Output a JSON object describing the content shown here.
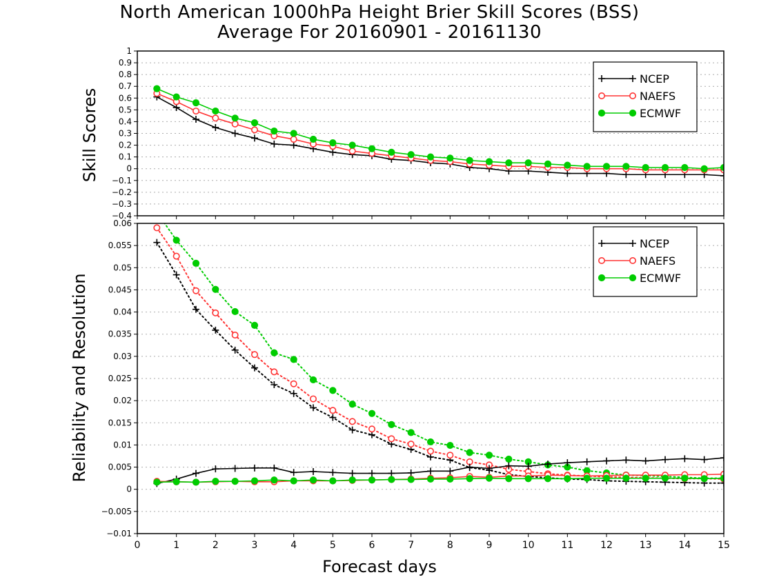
{
  "title": {
    "line1": "North American 1000hPa Height Brier Skill Scores (BSS)",
    "line2": "Average For 20160901 - 20161130"
  },
  "colors": {
    "NCEP": "#000000",
    "NAEFS": "#ff3333",
    "ECMWF": "#00cc00",
    "grid": "#aaaaaa"
  },
  "chart_data": [
    {
      "type": "line",
      "panel": "top",
      "ylabel": "Skill Scores",
      "xlabel": "",
      "xlim": [
        0,
        15
      ],
      "ylim": [
        -0.4,
        1
      ],
      "yticks": [
        -0.4,
        -0.3,
        -0.2,
        -0.1,
        0,
        0.1,
        0.2,
        0.3,
        0.4,
        0.5,
        0.6,
        0.7,
        0.8,
        0.9,
        1
      ],
      "grid": true,
      "legend": "top-right",
      "x": [
        0.5,
        1,
        1.5,
        2,
        2.5,
        3,
        3.5,
        4,
        4.5,
        5,
        5.5,
        6,
        6.5,
        7,
        7.5,
        8,
        8.5,
        9,
        9.5,
        10,
        10.5,
        11,
        11.5,
        12,
        12.5,
        13,
        13.5,
        14,
        14.5,
        15
      ],
      "series": [
        {
          "name": "NCEP",
          "marker": "plus",
          "style": "solid",
          "values": [
            0.61,
            0.52,
            0.42,
            0.35,
            0.3,
            0.26,
            0.21,
            0.2,
            0.17,
            0.14,
            0.12,
            0.11,
            0.08,
            0.07,
            0.05,
            0.04,
            0.01,
            0.0,
            -0.02,
            -0.02,
            -0.03,
            -0.04,
            -0.04,
            -0.04,
            -0.05,
            -0.05,
            -0.05,
            -0.05,
            -0.05,
            -0.06
          ]
        },
        {
          "name": "NAEFS",
          "marker": "open-circle",
          "style": "solid",
          "values": [
            0.64,
            0.57,
            0.49,
            0.43,
            0.38,
            0.33,
            0.28,
            0.25,
            0.21,
            0.19,
            0.15,
            0.13,
            0.11,
            0.09,
            0.07,
            0.06,
            0.04,
            0.03,
            0.02,
            0.02,
            0.01,
            0.01,
            0.0,
            0.0,
            0.0,
            -0.01,
            -0.01,
            -0.01,
            -0.01,
            -0.01
          ]
        },
        {
          "name": "ECMWF",
          "marker": "filled-circle",
          "style": "solid",
          "values": [
            0.68,
            0.61,
            0.56,
            0.49,
            0.43,
            0.39,
            0.32,
            0.3,
            0.25,
            0.22,
            0.2,
            0.17,
            0.14,
            0.12,
            0.1,
            0.09,
            0.07,
            0.06,
            0.05,
            0.05,
            0.04,
            0.03,
            0.02,
            0.02,
            0.02,
            0.01,
            0.01,
            0.01,
            0.0,
            0.01
          ]
        }
      ]
    },
    {
      "type": "line",
      "panel": "bottom",
      "ylabel": "Reliability and Resolution",
      "xlabel": "Forecast days",
      "xlim": [
        0,
        15
      ],
      "ylim": [
        -0.01,
        0.06
      ],
      "yticks": [
        -0.01,
        -0.005,
        0,
        0.005,
        0.01,
        0.015,
        0.02,
        0.025,
        0.03,
        0.035,
        0.04,
        0.045,
        0.05,
        0.055,
        0.06
      ],
      "xticks": [
        0,
        1,
        2,
        3,
        4,
        5,
        6,
        7,
        8,
        9,
        10,
        11,
        12,
        13,
        14,
        15
      ],
      "grid": true,
      "legend": "top-right",
      "x": [
        0.5,
        1,
        1.5,
        2,
        2.5,
        3,
        3.5,
        4,
        4.5,
        5,
        5.5,
        6,
        6.5,
        7,
        7.5,
        8,
        8.5,
        9,
        9.5,
        10,
        10.5,
        11,
        11.5,
        12,
        12.5,
        13,
        13.5,
        14,
        14.5,
        15
      ],
      "series": [
        {
          "name": "NCEP",
          "marker": "plus",
          "style": "dotted",
          "values": [
            0.0557,
            0.0484,
            0.0406,
            0.0359,
            0.0314,
            0.0274,
            0.0236,
            0.0216,
            0.0184,
            0.0162,
            0.0134,
            0.0123,
            0.0102,
            0.009,
            0.0073,
            0.0066,
            0.0049,
            0.0043,
            0.0033,
            0.0029,
            0.0026,
            0.0023,
            0.0022,
            0.0019,
            0.0018,
            0.0017,
            0.0016,
            0.0015,
            0.0014,
            0.0014
          ]
        },
        {
          "name": "NAEFS",
          "marker": "open-circle",
          "style": "dotted",
          "values": [
            0.059,
            0.0526,
            0.0448,
            0.0398,
            0.0348,
            0.0304,
            0.0265,
            0.0238,
            0.0204,
            0.0178,
            0.0153,
            0.0136,
            0.0114,
            0.0102,
            0.0086,
            0.0077,
            0.0062,
            0.0055,
            0.0045,
            0.004,
            0.0035,
            0.0032,
            0.003,
            0.0028,
            0.0027,
            0.0026,
            0.0025,
            0.0024,
            0.0024,
            0.0023
          ]
        },
        {
          "name": "ECMWF",
          "marker": "filled-circle",
          "style": "dotted",
          "values": [
            0.0625,
            0.0562,
            0.051,
            0.0451,
            0.0401,
            0.037,
            0.0308,
            0.0293,
            0.0247,
            0.0223,
            0.0192,
            0.0171,
            0.0146,
            0.0128,
            0.0107,
            0.0099,
            0.0083,
            0.0077,
            0.0068,
            0.0062,
            0.0055,
            0.005,
            0.0042,
            0.0037,
            0.0032,
            0.0031,
            0.0029,
            0.0027,
            0.0025,
            0.0025
          ]
        },
        {
          "name": "NCEP",
          "marker": "plus",
          "style": "solid",
          "values": [
            0.0013,
            0.0023,
            0.0036,
            0.0046,
            0.0047,
            0.0048,
            0.0048,
            0.0038,
            0.004,
            0.0038,
            0.0036,
            0.0036,
            0.0036,
            0.0037,
            0.0041,
            0.0041,
            0.005,
            0.0047,
            0.0053,
            0.0052,
            0.0057,
            0.006,
            0.0062,
            0.0064,
            0.0066,
            0.0064,
            0.0067,
            0.0069,
            0.0067,
            0.0071
          ]
        },
        {
          "name": "NAEFS",
          "marker": "open-circle",
          "style": "solid",
          "values": [
            0.0018,
            0.0017,
            0.0016,
            0.0017,
            0.0018,
            0.0017,
            0.0017,
            0.0019,
            0.0019,
            0.0019,
            0.002,
            0.0021,
            0.0022,
            0.0023,
            0.0025,
            0.0026,
            0.0029,
            0.0027,
            0.003,
            0.003,
            0.0032,
            0.0031,
            0.003,
            0.0031,
            0.0032,
            0.0032,
            0.0032,
            0.0033,
            0.0033,
            0.0034
          ]
        },
        {
          "name": "ECMWF",
          "marker": "filled-circle",
          "style": "solid",
          "values": [
            0.0016,
            0.0017,
            0.0016,
            0.0018,
            0.0018,
            0.0019,
            0.0021,
            0.0019,
            0.0021,
            0.0019,
            0.0021,
            0.0021,
            0.0022,
            0.0022,
            0.0023,
            0.0023,
            0.0024,
            0.0025,
            0.0024,
            0.0024,
            0.0024,
            0.0024,
            0.0025,
            0.0025,
            0.0025,
            0.0025,
            0.0025,
            0.0025,
            0.0024,
            0.0025
          ]
        }
      ]
    }
  ],
  "legend": {
    "items": [
      "NCEP",
      "NAEFS",
      "ECMWF"
    ]
  }
}
